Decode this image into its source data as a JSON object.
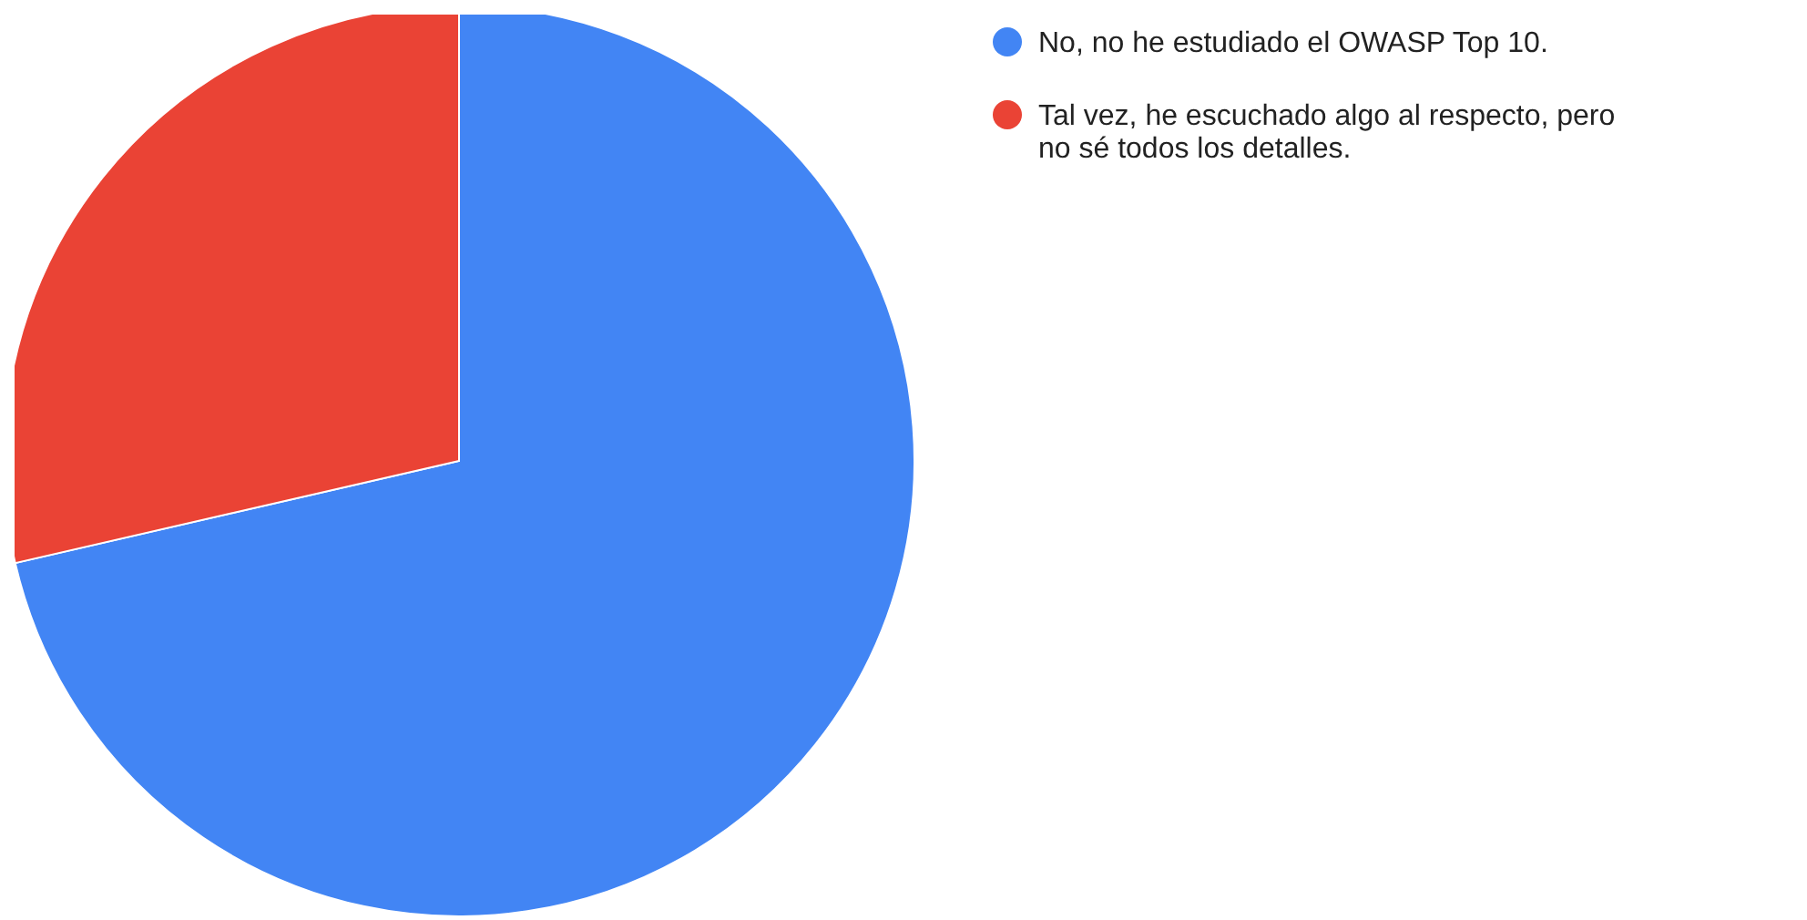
{
  "chart_data": {
    "type": "pie",
    "categories": [
      "No, no he estudiado el OWASP Top 10.",
      "Tal vez, he escuchado algo al respecto, pero no sé todos los detalles."
    ],
    "values": [
      71.4,
      28.6
    ],
    "colors": [
      "#4285f4",
      "#ea4335"
    ],
    "legend": "right"
  }
}
